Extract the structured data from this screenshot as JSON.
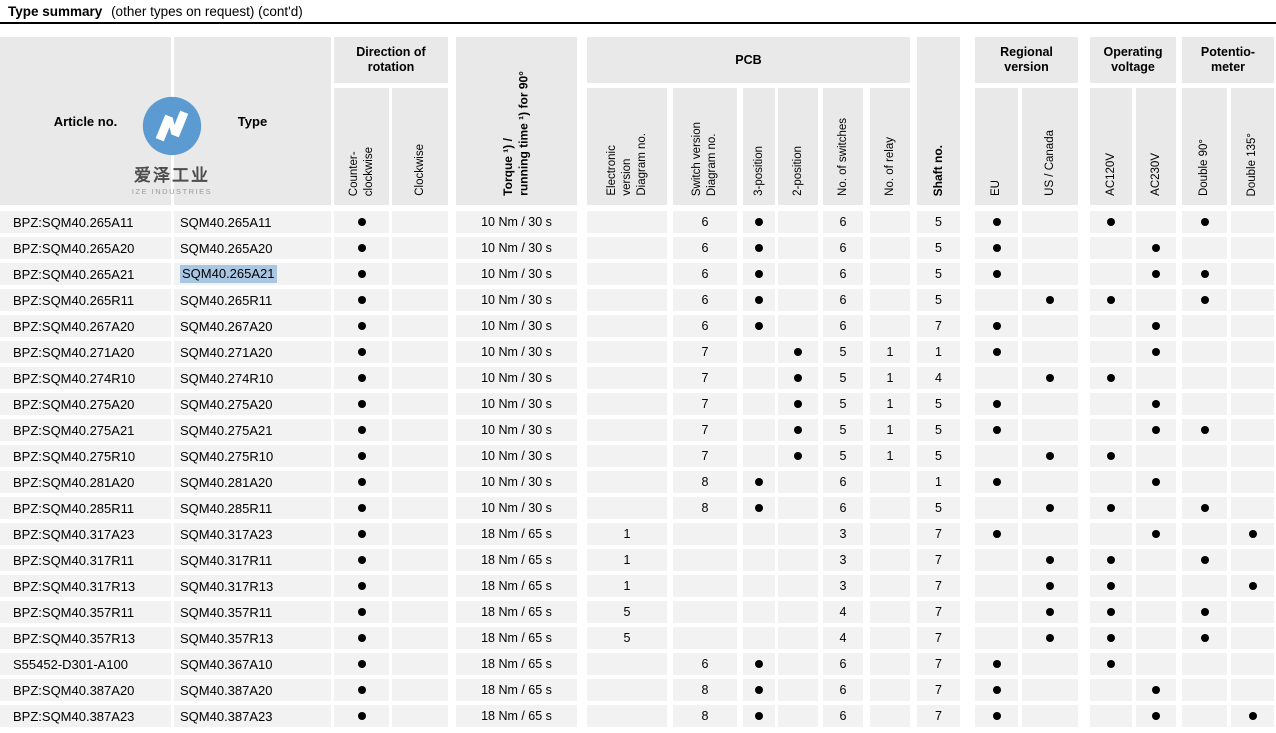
{
  "title": {
    "lead": "Type summary",
    "note": "(other types on request) (cont'd)"
  },
  "logo": {
    "cjk": "爱泽工业",
    "sub": "IZE INDUSTRIES"
  },
  "colors": {
    "header_bg": "#e9e9e9",
    "row_bg": "#f2f2f2",
    "logo_blue": "#5b9bd2",
    "selection_highlight": "#a9c7e3",
    "dot": "#000000"
  },
  "header": {
    "article": "Article no.",
    "type": "Type",
    "direction_group": "Direction of\nrotation",
    "pcb_group": "PCB",
    "regional_group": "Regional\nversion",
    "voltage_group": "Operating\nvoltage",
    "potentiometer_group": "Potentio-\nmeter",
    "ccw": "Counter-\nclockwise",
    "cw": "Clockwise",
    "torque": "Torque ¹) /\nrunning time ¹) for 90°",
    "elec": "Electronic\nversion\nDiagram no.",
    "switch": "Switch version\nDiagram no.",
    "pos3": "3-position",
    "pos2": "2-position",
    "switches": "No. of switches",
    "relay": "No. of relay",
    "shaft": "Shaft no.",
    "eu": "EU",
    "us": "US / Canada",
    "ac120": "AC120V",
    "ac230": "AC230V",
    "d90": "Double 90°",
    "d135": "Double 135°"
  },
  "highlight": {
    "row_index": 2,
    "column": "type",
    "color": "#a9c7e3"
  },
  "table": {
    "column_keys": [
      "article",
      "type",
      "ccw",
      "cw",
      "torque",
      "elec",
      "switch",
      "pos3",
      "pos2",
      "switches",
      "relay",
      "shaft",
      "eu",
      "us",
      "ac120",
      "ac230",
      "d90",
      "d135"
    ],
    "rows": [
      [
        "BPZ:SQM40.265A11",
        "SQM40.265A11",
        "●",
        "",
        "10 Nm / 30 s",
        "",
        "6",
        "●",
        "",
        "6",
        "",
        "5",
        "●",
        "",
        "●",
        "",
        "●",
        ""
      ],
      [
        "BPZ:SQM40.265A20",
        "SQM40.265A20",
        "●",
        "",
        "10 Nm / 30 s",
        "",
        "6",
        "●",
        "",
        "6",
        "",
        "5",
        "●",
        "",
        "",
        "●",
        "",
        ""
      ],
      [
        "BPZ:SQM40.265A21",
        "SQM40.265A21",
        "●",
        "",
        "10 Nm / 30 s",
        "",
        "6",
        "●",
        "",
        "6",
        "",
        "5",
        "●",
        "",
        "",
        "●",
        "●",
        ""
      ],
      [
        "BPZ:SQM40.265R11",
        "SQM40.265R11",
        "●",
        "",
        "10 Nm / 30 s",
        "",
        "6",
        "●",
        "",
        "6",
        "",
        "5",
        "",
        "●",
        "●",
        "",
        "●",
        ""
      ],
      [
        "BPZ:SQM40.267A20",
        "SQM40.267A20",
        "●",
        "",
        "10 Nm / 30 s",
        "",
        "6",
        "●",
        "",
        "6",
        "",
        "7",
        "●",
        "",
        "",
        "●",
        "",
        ""
      ],
      [
        "BPZ:SQM40.271A20",
        "SQM40.271A20",
        "●",
        "",
        "10 Nm / 30 s",
        "",
        "7",
        "",
        "●",
        "5",
        "1",
        "1",
        "●",
        "",
        "",
        "●",
        "",
        ""
      ],
      [
        "BPZ:SQM40.274R10",
        "SQM40.274R10",
        "●",
        "",
        "10 Nm / 30 s",
        "",
        "7",
        "",
        "●",
        "5",
        "1",
        "4",
        "",
        "●",
        "●",
        "",
        "",
        ""
      ],
      [
        "BPZ:SQM40.275A20",
        "SQM40.275A20",
        "●",
        "",
        "10 Nm / 30 s",
        "",
        "7",
        "",
        "●",
        "5",
        "1",
        "5",
        "●",
        "",
        "",
        "●",
        "",
        ""
      ],
      [
        "BPZ:SQM40.275A21",
        "SQM40.275A21",
        "●",
        "",
        "10 Nm / 30 s",
        "",
        "7",
        "",
        "●",
        "5",
        "1",
        "5",
        "●",
        "",
        "",
        "●",
        "●",
        ""
      ],
      [
        "BPZ:SQM40.275R10",
        "SQM40.275R10",
        "●",
        "",
        "10 Nm / 30 s",
        "",
        "7",
        "",
        "●",
        "5",
        "1",
        "5",
        "",
        "●",
        "●",
        "",
        "",
        ""
      ],
      [
        "BPZ:SQM40.281A20",
        "SQM40.281A20",
        "●",
        "",
        "10 Nm / 30 s",
        "",
        "8",
        "●",
        "",
        "6",
        "",
        "1",
        "●",
        "",
        "",
        "●",
        "",
        ""
      ],
      [
        "BPZ:SQM40.285R11",
        "SQM40.285R11",
        "●",
        "",
        "10 Nm / 30 s",
        "",
        "8",
        "●",
        "",
        "6",
        "",
        "5",
        "",
        "●",
        "●",
        "",
        "●",
        ""
      ],
      [
        "BPZ:SQM40.317A23",
        "SQM40.317A23",
        "●",
        "",
        "18 Nm / 65 s",
        "1",
        "",
        "",
        "",
        "3",
        "",
        "7",
        "●",
        "",
        "",
        "●",
        "",
        "●"
      ],
      [
        "BPZ:SQM40.317R11",
        "SQM40.317R11",
        "●",
        "",
        "18 Nm / 65 s",
        "1",
        "",
        "",
        "",
        "3",
        "",
        "7",
        "",
        "●",
        "●",
        "",
        "●",
        ""
      ],
      [
        "BPZ:SQM40.317R13",
        "SQM40.317R13",
        "●",
        "",
        "18 Nm / 65 s",
        "1",
        "",
        "",
        "",
        "3",
        "",
        "7",
        "",
        "●",
        "●",
        "",
        "",
        "●"
      ],
      [
        "BPZ:SQM40.357R11",
        "SQM40.357R11",
        "●",
        "",
        "18 Nm / 65 s",
        "5",
        "",
        "",
        "",
        "4",
        "",
        "7",
        "",
        "●",
        "●",
        "",
        "●",
        ""
      ],
      [
        "BPZ:SQM40.357R13",
        "SQM40.357R13",
        "●",
        "",
        "18 Nm / 65 s",
        "5",
        "",
        "",
        "",
        "4",
        "",
        "7",
        "",
        "●",
        "●",
        "",
        "●",
        ""
      ],
      [
        "S55452-D301-A100",
        "SQM40.367A10",
        "●",
        "",
        "18 Nm / 65 s",
        "",
        "6",
        "●",
        "",
        "6",
        "",
        "7",
        "●",
        "",
        "●",
        "",
        "",
        ""
      ],
      [
        "BPZ:SQM40.387A20",
        "SQM40.387A20",
        "●",
        "",
        "18 Nm / 65 s",
        "",
        "8",
        "●",
        "",
        "6",
        "",
        "7",
        "●",
        "",
        "",
        "●",
        "",
        ""
      ],
      [
        "BPZ:SQM40.387A23",
        "SQM40.387A23",
        "●",
        "",
        "18 Nm / 65 s",
        "",
        "8",
        "●",
        "",
        "6",
        "",
        "7",
        "●",
        "",
        "",
        "●",
        "",
        "●"
      ]
    ]
  }
}
